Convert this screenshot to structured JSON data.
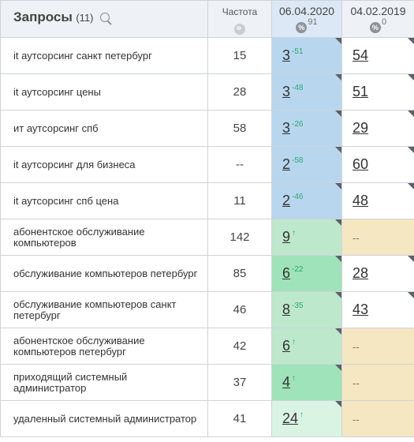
{
  "header": {
    "title": "Запросы",
    "count": "(11)",
    "frequency_label": "Частота",
    "dates": [
      {
        "label": "06.04.2020",
        "count": "91"
      },
      {
        "label": "04.02.2019",
        "count": "0"
      }
    ]
  },
  "rows": [
    {
      "query": "it аутсорсинг санкт петербург",
      "freq": "15",
      "pos1": "3",
      "chg1": "-51",
      "pos2": "54",
      "bg1": "blue",
      "bg2": "white"
    },
    {
      "query": "it аутсорсинг цены",
      "freq": "28",
      "pos1": "3",
      "chg1": "-48",
      "pos2": "51",
      "bg1": "blue",
      "bg2": "white"
    },
    {
      "query": "ит аутсорсинг спб",
      "freq": "58",
      "pos1": "3",
      "chg1": "-26",
      "pos2": "29",
      "bg1": "blue",
      "bg2": "white"
    },
    {
      "query": "it аутсорсинг для бизнеса",
      "freq": "--",
      "pos1": "2",
      "chg1": "-58",
      "pos2": "60",
      "bg1": "blue",
      "bg2": "white"
    },
    {
      "query": "it аутсорсинг спб цена",
      "freq": "11",
      "pos1": "2",
      "chg1": "-46",
      "pos2": "48",
      "bg1": "blue",
      "bg2": "white"
    },
    {
      "query": "абонентское обслуживание компьютеров",
      "freq": "142",
      "pos1": "9",
      "chg1": "↑",
      "pos2": "--",
      "bg1": "green",
      "bg2": "yellow"
    },
    {
      "query": "обслуживание компьютеров петербург",
      "freq": "85",
      "pos1": "6",
      "chg1": "-22",
      "pos2": "28",
      "bg1": "green2",
      "bg2": "white"
    },
    {
      "query": "обслуживание компьютеров санкт петербург",
      "freq": "46",
      "pos1": "8",
      "chg1": "-35",
      "pos2": "43",
      "bg1": "green",
      "bg2": "white"
    },
    {
      "query": "абонентское обслуживание компьютеров петербург",
      "freq": "42",
      "pos1": "6",
      "chg1": "↑",
      "pos2": "--",
      "bg1": "green",
      "bg2": "yellow"
    },
    {
      "query": "приходящий системный администратор",
      "freq": "37",
      "pos1": "4",
      "chg1": "↑",
      "pos2": "--",
      "bg1": "green2",
      "bg2": "yellow"
    },
    {
      "query": "удаленный системный администратор",
      "freq": "41",
      "pos1": "24",
      "chg1": "↑",
      "pos2": "--",
      "bg1": "lgreen",
      "bg2": "yellow"
    }
  ],
  "icons": {
    "search": "search-icon",
    "globe": "globe-icon",
    "percent": "percent-icon"
  },
  "colors": {
    "blue": "#b8d7ef",
    "green": "#bde8cc",
    "green2": "#9ee3b9",
    "lgreen": "#daf4e4",
    "yellow": "#f4e7c1",
    "white": "#ffffff",
    "change": "#2aa872"
  }
}
